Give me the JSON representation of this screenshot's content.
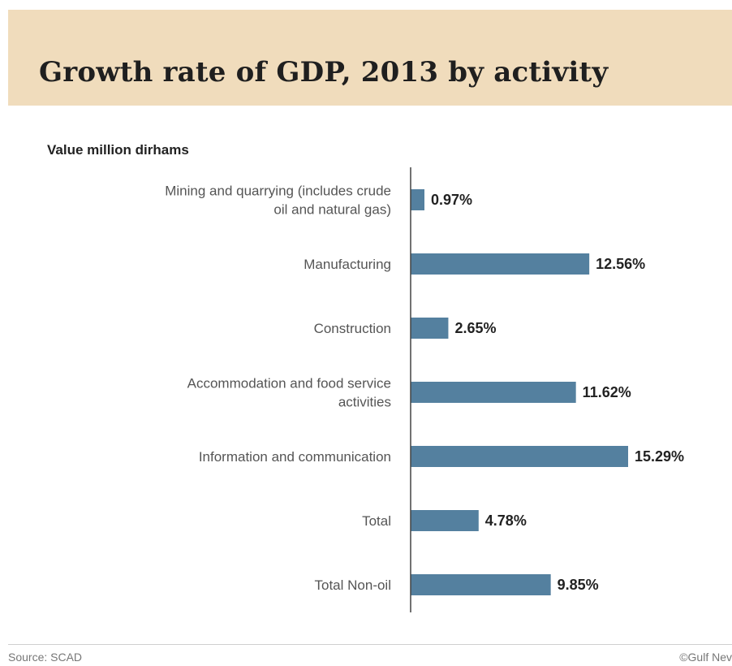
{
  "colors": {
    "header_band": "#f0dcbc",
    "bar": "#54809f",
    "axis": "#444444",
    "title": "#1f1f1f"
  },
  "chart_data": {
    "type": "bar",
    "orientation": "horizontal",
    "title": "Growth rate of GDP, 2013 by activity",
    "subtitle": "Value million dirhams",
    "categories": [
      [
        "Mining and quarrying (includes crude",
        "oil and natural gas)"
      ],
      [
        "Manufacturing"
      ],
      [
        "Construction"
      ],
      [
        "Accommodation and food service",
        "activities"
      ],
      [
        "Information and communication"
      ],
      [
        "Total"
      ],
      [
        "Total Non-oil"
      ]
    ],
    "values": [
      0.97,
      12.56,
      2.65,
      11.62,
      15.29,
      4.78,
      9.85
    ],
    "value_labels": [
      "0.97%",
      "12.56%",
      "2.65%",
      "11.62%",
      "15.29%",
      "4.78%",
      "9.85%"
    ],
    "xlim": [
      0,
      15.29
    ],
    "grid": false,
    "legend": "none"
  },
  "footer": {
    "source": "Source: SCAD",
    "credit": "©Gulf Nev"
  }
}
